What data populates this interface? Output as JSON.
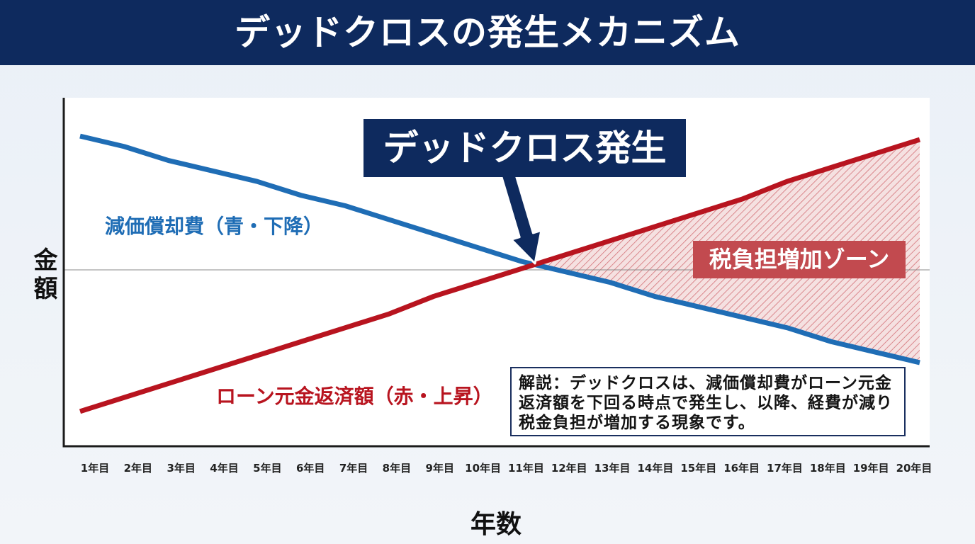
{
  "colors": {
    "header_bg": "#0e2a5e",
    "callout_bg": "#0e2a5e",
    "zone_label_bg": "#c24a4f",
    "note_border": "#1a2f5f"
  },
  "chart_data": {
    "type": "line",
    "title": "デッドクロスの発生メカニズム",
    "xlabel": "年数",
    "ylabel": "金額",
    "grid": false,
    "ylim": [
      0,
      100
    ],
    "categories": [
      "1年目",
      "2年目",
      "3年目",
      "4年目",
      "5年目",
      "6年目",
      "7年目",
      "8年目",
      "9年目",
      "10年目",
      "11年目",
      "12年目",
      "13年目",
      "14年目",
      "15年目",
      "16年目",
      "17年目",
      "18年目",
      "19年目",
      "20年目"
    ],
    "series": [
      {
        "name": "減価償却費（青・下降）",
        "color": "#1f6db5",
        "values": [
          89,
          86,
          82,
          79,
          76,
          72,
          69,
          65,
          61,
          57,
          53,
          50,
          47,
          43,
          40,
          37,
          34,
          30,
          27,
          24
        ]
      },
      {
        "name": "ローン元金返済額（赤・上昇）",
        "color": "#b8141f",
        "values": [
          10,
          14,
          18,
          22,
          26,
          30,
          34,
          38,
          43,
          47,
          51,
          55,
          59,
          63,
          67,
          71,
          76,
          80,
          84,
          88
        ]
      }
    ],
    "annotations": {
      "crossover_label": "デッドクロス発生",
      "zone_label": "税負担増加ゾーン",
      "note_lines": [
        "解説：デッドクロスは、減価償却費がローン元金",
        "返済額を下回る時点で発生し、以降、経費が減り",
        "税金負担が増加する現象です。"
      ]
    }
  }
}
